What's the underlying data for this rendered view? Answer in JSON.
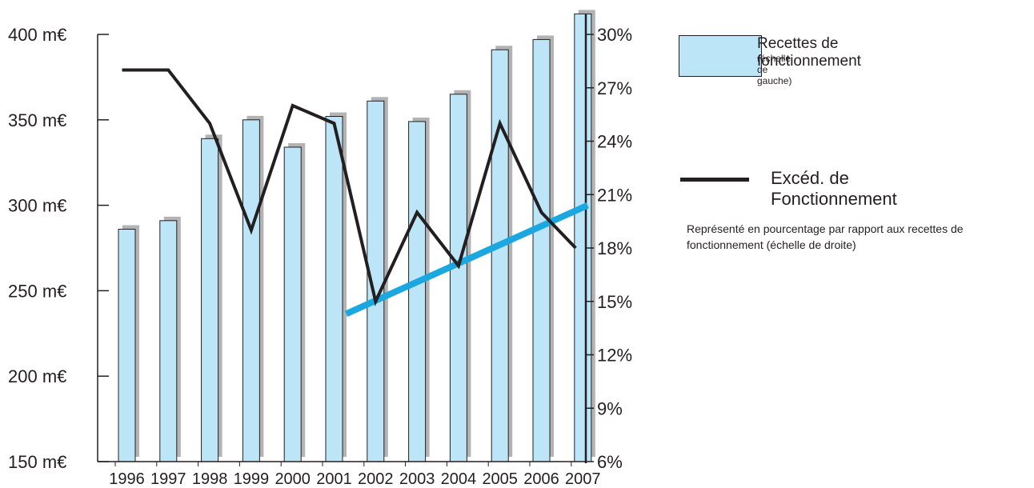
{
  "chart_data": {
    "type": "bar",
    "categories": [
      "1996",
      "1997",
      "1998",
      "1999",
      "2000",
      "2001",
      "2002",
      "2003",
      "2004",
      "2005",
      "2006",
      "2007"
    ],
    "series": [
      {
        "name": "Recettes de fonctionnement",
        "kind": "bar",
        "axis": "left",
        "color": "#bde5f8",
        "shadow_color": "#b3b3b3",
        "values": [
          286,
          291,
          339,
          350,
          334,
          352,
          361,
          349,
          365,
          391,
          397,
          412
        ]
      },
      {
        "name": "Excéd. de Fonctionnement",
        "kind": "line",
        "axis": "right",
        "color": "#231f20",
        "values": [
          28,
          28,
          25,
          19,
          26,
          25,
          15,
          20,
          17,
          25,
          20,
          18
        ]
      },
      {
        "kind": "trendline",
        "axis": "right",
        "color": "#1ba8e0",
        "x": [
          "2001",
          "2007"
        ],
        "values": [
          14.3,
          20.4
        ]
      }
    ],
    "left_axis": {
      "ylim": [
        150,
        400
      ],
      "ticks": [
        150,
        200,
        250,
        300,
        350,
        400
      ],
      "tick_labels": [
        "150  m€",
        "200  m€",
        "250  m€",
        "300  m€",
        "350  m€",
        "400  m€"
      ]
    },
    "right_axis": {
      "ylim": [
        6,
        31
      ],
      "ticks": [
        6,
        9,
        12,
        15,
        18,
        21,
        24,
        27,
        30
      ],
      "tick_labels": [
        "6%",
        "9%",
        "12%",
        "15%",
        "18%",
        "21%",
        "24%",
        "27%",
        "30%"
      ]
    },
    "legend": {
      "bar_label": "Recettes de fonctionnement",
      "bar_note": "(échelle de gauche)",
      "line_label": "Excéd. de Fonctionnement",
      "line_note": "Représenté en pourcentage par rapport aux recettes de fonctionnement (échelle de droite)",
      "placement": "right"
    },
    "grid": false
  }
}
